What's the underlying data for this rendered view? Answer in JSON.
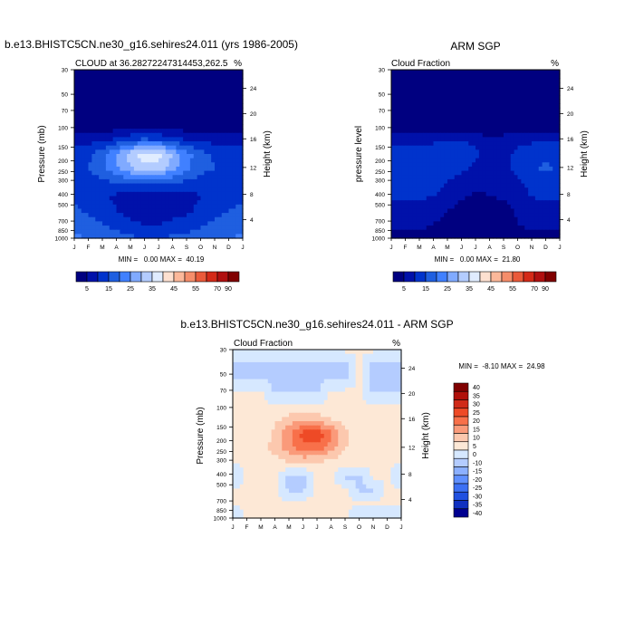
{
  "chart_data": [
    {
      "type": "heatmap",
      "id": "model",
      "figure_title": "b.e13.BHISTC5CN.ne30_g16.sehires24.011 (yrs 1986-2005)",
      "title_left": "CLOUD at 36.28272247314453,262.5",
      "title_right": "%",
      "ylabel": "Pressure (mb)",
      "ylabel_right": "Height (km)",
      "x_ticklabels": [
        "J",
        "F",
        "M",
        "A",
        "M",
        "J",
        "J",
        "A",
        "S",
        "O",
        "N",
        "D",
        "J"
      ],
      "y_ticklabels": [
        "30",
        "50",
        "70",
        "100",
        "150",
        "200",
        "250",
        "300",
        "400",
        "500",
        "700",
        "850",
        "1000"
      ],
      "y_right_ticklabels": [
        "24",
        "20",
        "16",
        "12",
        "8",
        "4"
      ],
      "minmax_text": "MIN =   0.00 MAX =  40.19",
      "min": 0.0,
      "max": 40.19,
      "colorbar_labels": [
        "5",
        "15",
        "25",
        "35",
        "45",
        "55",
        "70",
        "90"
      ],
      "grid": [
        [
          2,
          2,
          2,
          2,
          2,
          2,
          2,
          2,
          2,
          2,
          2,
          2,
          2
        ],
        [
          2,
          2,
          2,
          2,
          2,
          2,
          2,
          2,
          2,
          2,
          2,
          2,
          2
        ],
        [
          2,
          2,
          2,
          2,
          2,
          2,
          2,
          2,
          2,
          2,
          2,
          2,
          2
        ],
        [
          2,
          2,
          2,
          2,
          2,
          2,
          2,
          2,
          2,
          2,
          2,
          2,
          2
        ],
        [
          2,
          2,
          2,
          2,
          3,
          3,
          3,
          2,
          2,
          2,
          2,
          2,
          2
        ],
        [
          8,
          8,
          9,
          11,
          14,
          16,
          15,
          12,
          10,
          9,
          8,
          8,
          8
        ],
        [
          13,
          14,
          18,
          25,
          33,
          38,
          37,
          30,
          22,
          17,
          14,
          13,
          13
        ],
        [
          14,
          15,
          19,
          24,
          30,
          34,
          33,
          27,
          21,
          17,
          15,
          14,
          14
        ],
        [
          12,
          12,
          14,
          15,
          17,
          17,
          17,
          16,
          14,
          13,
          12,
          12,
          12
        ],
        [
          14,
          13,
          11,
          9,
          7,
          6,
          6,
          7,
          8,
          10,
          12,
          13,
          14
        ],
        [
          16,
          14,
          12,
          10,
          8,
          7,
          7,
          8,
          9,
          11,
          13,
          15,
          16
        ],
        [
          18,
          17,
          15,
          13,
          11,
          10,
          10,
          11,
          12,
          14,
          16,
          17,
          18
        ],
        [
          21,
          20,
          19,
          17,
          16,
          15,
          15,
          16,
          17,
          18,
          19,
          20,
          21
        ]
      ]
    },
    {
      "type": "heatmap",
      "id": "obs",
      "figure_title": "ARM SGP",
      "title_left": "Cloud Fraction",
      "title_right": "%",
      "ylabel": "pressure level",
      "ylabel_right": "Height (km)",
      "x_ticklabels": [
        "J",
        "F",
        "M",
        "A",
        "M",
        "J",
        "J",
        "A",
        "S",
        "O",
        "N",
        "D",
        "J"
      ],
      "y_ticklabels": [
        "30",
        "50",
        "70",
        "100",
        "150",
        "200",
        "250",
        "300",
        "400",
        "500",
        "700",
        "850",
        "1000"
      ],
      "y_right_ticklabels": [
        "24",
        "20",
        "16",
        "12",
        "8",
        "4"
      ],
      "minmax_text": "MIN =   0.00 MAX =  21.80",
      "min": 0.0,
      "max": 21.8,
      "colorbar_labels": [
        "5",
        "15",
        "25",
        "35",
        "45",
        "55",
        "70",
        "90"
      ],
      "grid": [
        [
          1,
          1,
          1,
          1,
          1,
          1,
          1,
          1,
          1,
          1,
          1,
          1,
          1
        ],
        [
          1,
          1,
          1,
          1,
          1,
          1,
          1,
          1,
          1,
          1,
          1,
          1,
          1
        ],
        [
          1,
          1,
          1,
          1,
          1,
          1,
          1,
          1,
          1,
          1,
          1,
          1,
          1
        ],
        [
          1,
          1,
          1,
          1,
          1,
          1,
          1,
          1,
          1,
          1,
          1,
          1,
          1
        ],
        [
          1,
          1,
          1,
          1,
          1,
          1,
          1,
          1,
          1,
          1,
          1,
          1,
          1
        ],
        [
          9,
          8,
          8,
          9,
          10,
          10,
          9,
          6,
          7,
          9,
          9,
          9,
          9
        ],
        [
          13,
          12,
          12,
          13,
          14,
          13,
          11,
          7,
          9,
          11,
          13,
          14,
          13
        ],
        [
          14,
          13,
          13,
          14,
          13,
          11,
          9,
          6,
          8,
          12,
          14,
          16,
          14
        ],
        [
          12,
          12,
          12,
          12,
          10,
          8,
          7,
          6,
          7,
          9,
          12,
          12,
          12
        ],
        [
          11,
          11,
          11,
          10,
          8,
          6,
          4,
          5,
          6,
          8,
          10,
          11,
          11
        ],
        [
          8,
          8,
          8,
          7,
          5,
          3,
          2,
          2,
          3,
          6,
          8,
          8,
          8
        ],
        [
          6,
          6,
          6,
          5,
          4,
          2,
          1,
          1,
          2,
          5,
          6,
          6,
          6
        ],
        [
          4,
          4,
          4,
          3,
          2,
          1,
          1,
          1,
          1,
          3,
          4,
          4,
          4
        ]
      ]
    },
    {
      "type": "heatmap",
      "id": "diff",
      "figure_title": "b.e13.BHISTC5CN.ne30_g16.sehires24.011 - ARM SGP",
      "title_left": "Cloud Fraction",
      "title_right": "%",
      "ylabel": "Pressure (mb)",
      "ylabel_right": "Height (km)",
      "x_ticklabels": [
        "J",
        "F",
        "M",
        "A",
        "M",
        "J",
        "J",
        "A",
        "S",
        "O",
        "N",
        "D",
        "J"
      ],
      "y_ticklabels": [
        "30",
        "50",
        "70",
        "100",
        "150",
        "200",
        "250",
        "300",
        "400",
        "500",
        "700",
        "850",
        "1000"
      ],
      "y_right_ticklabels": [
        "24",
        "20",
        "16",
        "12",
        "8",
        "4"
      ],
      "minmax_text": "MIN =  -8.10 MAX =  24.98",
      "min": -8.1,
      "max": 24.98,
      "colorbar_labels": [
        "40",
        "35",
        "30",
        "25",
        "20",
        "15",
        "10",
        "5",
        "0",
        "-10",
        "-15",
        "-20",
        "-25",
        "-30",
        "-35",
        "-40"
      ],
      "grid": [
        [
          1,
          1,
          1,
          1,
          1,
          1,
          1,
          1,
          1,
          1,
          1,
          1,
          1
        ],
        [
          -6,
          -6,
          -6,
          -6,
          -6,
          -6,
          -6,
          -6,
          -6,
          1,
          -6,
          -6,
          -6
        ],
        [
          -6,
          -6,
          -6,
          -6,
          -6,
          -6,
          -6,
          -6,
          -6,
          1,
          -6,
          -6,
          -6
        ],
        [
          1,
          1,
          1,
          -6,
          -6,
          -6,
          -6,
          1,
          1,
          1,
          -6,
          -6,
          -6
        ],
        [
          1,
          1,
          1,
          1,
          1,
          1,
          1,
          1,
          1,
          1,
          1,
          1,
          1
        ],
        [
          1,
          1,
          3,
          4,
          7,
          9,
          8,
          5,
          3,
          1,
          1,
          1,
          1
        ],
        [
          1,
          1,
          2,
          6,
          14,
          22,
          24,
          16,
          7,
          2,
          1,
          1,
          1
        ],
        [
          1,
          1,
          3,
          7,
          13,
          18,
          18,
          12,
          5,
          2,
          1,
          1,
          1
        ],
        [
          1,
          1,
          2,
          3,
          5,
          6,
          5,
          4,
          3,
          2,
          1,
          1,
          1
        ],
        [
          -6,
          1,
          1,
          1,
          -6,
          -6,
          1,
          1,
          -6,
          -6,
          1,
          1,
          -6
        ],
        [
          1,
          1,
          1,
          2,
          -6,
          -6,
          1,
          2,
          1,
          -6,
          -6,
          1,
          1
        ],
        [
          1,
          1,
          1,
          1,
          1,
          2,
          2,
          1,
          1,
          1,
          1,
          1,
          1
        ],
        [
          -6,
          1,
          1,
          1,
          1,
          1,
          1,
          1,
          1,
          -6,
          -6,
          -6,
          -6
        ]
      ]
    }
  ],
  "colors": {
    "scale_blue_red": [
      "#000080",
      "#0011aa",
      "#0033cc",
      "#1f5fe0",
      "#4080ff",
      "#80aaff",
      "#b3ccff",
      "#e0ecff",
      "#fde0d0",
      "#fcb89a",
      "#f58d6a",
      "#ea5a3a",
      "#d42a18",
      "#b01010",
      "#800000"
    ],
    "scale_diff": [
      "#800000",
      "#b0100a",
      "#d02a18",
      "#ee4a26",
      "#f8704a",
      "#fa9a7a",
      "#fcc8ae",
      "#fde8d6",
      "#d6e8ff",
      "#b4ccff",
      "#8cb0ff",
      "#6090ff",
      "#3c70f4",
      "#2050e0",
      "#1030c0",
      "#000090"
    ]
  }
}
